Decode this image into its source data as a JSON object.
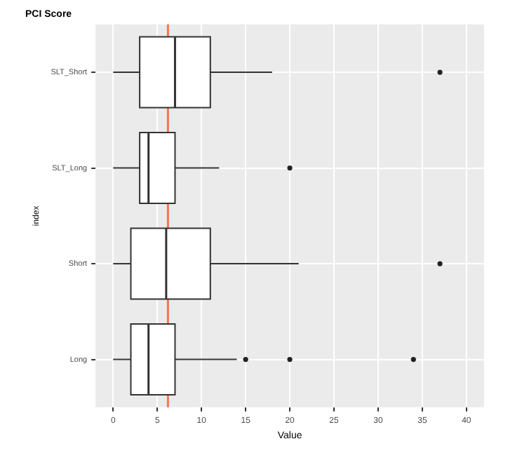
{
  "chart_data": {
    "type": "box",
    "title": "PCI Score",
    "xlabel": "Value",
    "ylabel": "index",
    "orientation": "horizontal",
    "categories": [
      "SLT_Short",
      "SLT_Long",
      "Short",
      "Long"
    ],
    "boxes": [
      {
        "low": 0,
        "q1": 3,
        "median": 7,
        "q3": 11,
        "high": 18,
        "outliers": [
          37
        ]
      },
      {
        "low": 0,
        "q1": 3,
        "median": 4,
        "q3": 7,
        "high": 12,
        "outliers": [
          20
        ]
      },
      {
        "low": 0,
        "q1": 2,
        "median": 6,
        "q3": 11,
        "high": 21,
        "outliers": [
          37
        ]
      },
      {
        "low": 0,
        "q1": 2,
        "median": 4,
        "q3": 7,
        "high": 14,
        "outliers": [
          15,
          20,
          34
        ]
      }
    ],
    "xlim": [
      -2,
      42
    ],
    "xticks": [
      0,
      5,
      10,
      15,
      20,
      25,
      30,
      35,
      40
    ],
    "grid": true,
    "ref_lines": [
      {
        "axis": "x",
        "value": 6.2,
        "color": "#f4764e"
      }
    ]
  }
}
